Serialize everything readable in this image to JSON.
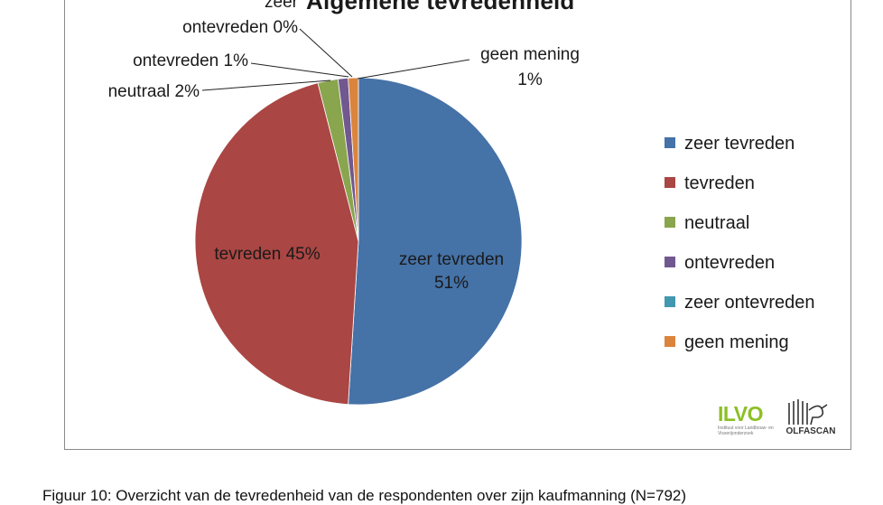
{
  "chart_data": {
    "type": "pie",
    "title": "Algemene tevredenheid",
    "slices": [
      {
        "name": "zeer tevreden",
        "value": 51,
        "color": "#4572a7",
        "label": [
          "zeer tevreden",
          "51%"
        ]
      },
      {
        "name": "tevreden",
        "value": 45,
        "color": "#aa4643",
        "label": [
          "tevreden 45%"
        ]
      },
      {
        "name": "neutraal",
        "value": 2,
        "color": "#89a54e",
        "label": [
          "neutraal 2%"
        ]
      },
      {
        "name": "ontevreden",
        "value": 1,
        "color": "#71588f",
        "label": [
          "ontevreden 1%"
        ]
      },
      {
        "name": "zeer ontevreden",
        "value": 0,
        "color": "#4198af",
        "label": [
          "zeer",
          "ontevreden 0%"
        ]
      },
      {
        "name": "geen mening",
        "value": 1,
        "color": "#db843d",
        "label": [
          "geen mening",
          "1%"
        ]
      }
    ],
    "legend_position": "right"
  },
  "logos": {
    "ilvo": "ILVO",
    "ilvo_sub": "Instituut voor Landbouw- en Visserijonderzoek",
    "olfascan": "OLFASCAN"
  },
  "caption": "Figuur 10: Overzicht van de tevredenheid van de respondenten over zijn kaufmanning (N=792)"
}
